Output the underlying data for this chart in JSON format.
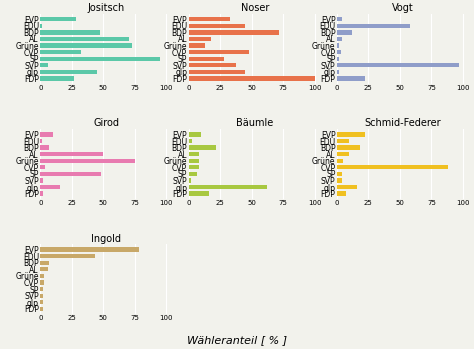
{
  "parties": [
    "EVP",
    "EDU",
    "BDP",
    "AL",
    "Grüne",
    "CVP",
    "SP",
    "SVP",
    "glp",
    "FDP"
  ],
  "facets": {
    "Jositsch": {
      "values": [
        28,
        1,
        47,
        70,
        73,
        32,
        95,
        6,
        45,
        27
      ],
      "color": "#5BC8A8"
    },
    "Noser": {
      "values": [
        33,
        45,
        72,
        18,
        13,
        48,
        28,
        38,
        45,
        100
      ],
      "color": "#E8724A"
    },
    "Vogt": {
      "values": [
        4,
        58,
        12,
        4,
        2,
        3,
        2,
        97,
        2,
        22
      ],
      "color": "#8F9DC9"
    },
    "Girod": {
      "values": [
        10,
        1,
        7,
        50,
        75,
        4,
        48,
        2,
        16,
        2
      ],
      "color": "#E87BB0"
    },
    "Bäumle": {
      "values": [
        10,
        3,
        22,
        8,
        8,
        8,
        7,
        2,
        62,
        16
      ],
      "color": "#A8C840"
    },
    "Schmid-Federer": {
      "values": [
        22,
        10,
        18,
        10,
        5,
        88,
        4,
        4,
        16,
        7
      ],
      "color": "#F0C020"
    },
    "Ingold": {
      "values": [
        78,
        43,
        7,
        6,
        3,
        3,
        2,
        2,
        2,
        2
      ],
      "color": "#C8A868"
    }
  },
  "layout": [
    [
      "Jositsch",
      "Noser",
      "Vogt"
    ],
    [
      "Girod",
      "Bäumle",
      "Schmid-Federer"
    ],
    [
      "Ingold",
      null,
      null
    ]
  ],
  "xlabel": "Wähleranteil [ % ]",
  "xlim": [
    0,
    105
  ],
  "xticks": [
    0,
    25,
    50,
    75,
    100
  ],
  "background_color": "#F2F2EC",
  "bar_height": 0.65,
  "grid_color": "#FFFFFF",
  "title_fontsize": 7,
  "ylabel_fontsize": 5.5,
  "xlabel_fontsize": 8,
  "tick_fontsize": 5
}
